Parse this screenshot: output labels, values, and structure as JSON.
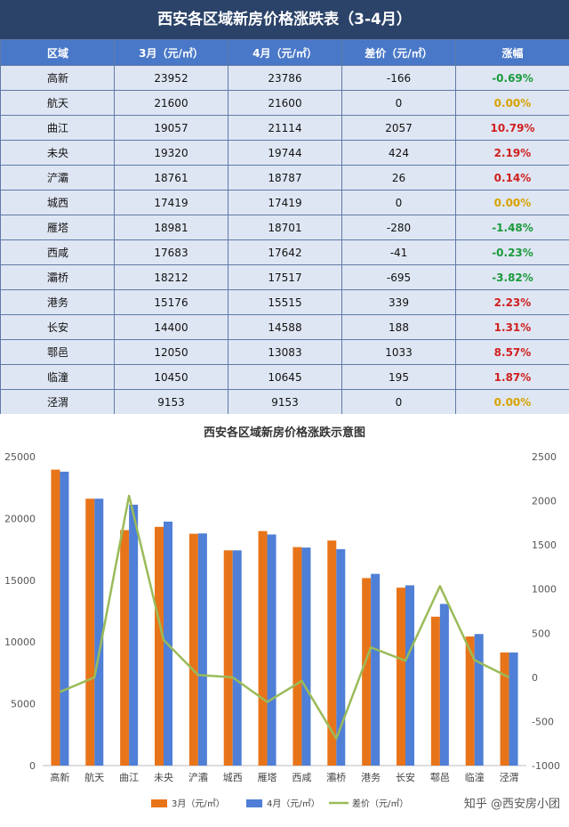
{
  "table": {
    "title": "西安各区域新房价格涨跌表（3-4月）",
    "headers": [
      "区域",
      "3月（元/㎡）",
      "4月（元/㎡）",
      "差价（元/㎡）",
      "涨幅"
    ],
    "rows": [
      {
        "region": "高新",
        "mar": "23952",
        "apr": "23786",
        "diff": "-166",
        "pct": "-0.69%",
        "color": "#1a9a3a"
      },
      {
        "region": "航天",
        "mar": "21600",
        "apr": "21600",
        "diff": "0",
        "pct": "0.00%",
        "color": "#d8a200"
      },
      {
        "region": "曲江",
        "mar": "19057",
        "apr": "21114",
        "diff": "2057",
        "pct": "10.79%",
        "color": "#d0201f"
      },
      {
        "region": "未央",
        "mar": "19320",
        "apr": "19744",
        "diff": "424",
        "pct": "2.19%",
        "color": "#d0201f"
      },
      {
        "region": "浐灞",
        "mar": "18761",
        "apr": "18787",
        "diff": "26",
        "pct": "0.14%",
        "color": "#d0201f"
      },
      {
        "region": "城西",
        "mar": "17419",
        "apr": "17419",
        "diff": "0",
        "pct": "0.00%",
        "color": "#d8a200"
      },
      {
        "region": "雁塔",
        "mar": "18981",
        "apr": "18701",
        "diff": "-280",
        "pct": "-1.48%",
        "color": "#1a9a3a"
      },
      {
        "region": "西咸",
        "mar": "17683",
        "apr": "17642",
        "diff": "-41",
        "pct": "-0.23%",
        "color": "#1a9a3a"
      },
      {
        "region": "灞桥",
        "mar": "18212",
        "apr": "17517",
        "diff": "-695",
        "pct": "-3.82%",
        "color": "#1a9a3a"
      },
      {
        "region": "港务",
        "mar": "15176",
        "apr": "15515",
        "diff": "339",
        "pct": "2.23%",
        "color": "#d0201f"
      },
      {
        "region": "长安",
        "mar": "14400",
        "apr": "14588",
        "diff": "188",
        "pct": "1.31%",
        "color": "#d0201f"
      },
      {
        "region": "鄠邑",
        "mar": "12050",
        "apr": "13083",
        "diff": "1033",
        "pct": "8.57%",
        "color": "#d0201f"
      },
      {
        "region": "临潼",
        "mar": "10450",
        "apr": "10645",
        "diff": "195",
        "pct": "1.87%",
        "color": "#d0201f"
      },
      {
        "region": "泾渭",
        "mar": "9153",
        "apr": "9153",
        "diff": "0",
        "pct": "0.00%",
        "color": "#d8a200"
      }
    ]
  },
  "chart_data": {
    "type": "bar",
    "title": "西安各区域新房价格涨跌示意图",
    "categories": [
      "高新",
      "航天",
      "曲江",
      "未央",
      "浐灞",
      "城西",
      "雁塔",
      "西咸",
      "灞桥",
      "港务",
      "长安",
      "鄠邑",
      "临潼",
      "泾渭"
    ],
    "series": [
      {
        "name": "3月（元/㎡）",
        "type": "bar",
        "axis": "left",
        "color": "#e8741a",
        "values": [
          23952,
          21600,
          19057,
          19320,
          18761,
          17419,
          18981,
          17683,
          18212,
          15176,
          14400,
          12050,
          10450,
          9153
        ]
      },
      {
        "name": "4月（元/㎡）",
        "type": "bar",
        "axis": "left",
        "color": "#4f7fd6",
        "values": [
          23786,
          21600,
          21114,
          19744,
          18787,
          17419,
          18701,
          17642,
          17517,
          15515,
          14588,
          13083,
          10645,
          9153
        ]
      },
      {
        "name": "差价（元/㎡）",
        "type": "line",
        "axis": "right",
        "color": "#9bbb59",
        "values": [
          -166,
          0,
          2057,
          424,
          26,
          0,
          -280,
          -41,
          -695,
          339,
          188,
          1033,
          195,
          0
        ]
      }
    ],
    "y_left": {
      "min": 0,
      "max": 25000,
      "ticks": [
        "0",
        "5000",
        "10000",
        "15000",
        "20000",
        "25000"
      ]
    },
    "y_right": {
      "min": -1000,
      "max": 2500,
      "ticks": [
        "-1000",
        "-500",
        "0",
        "500",
        "1000",
        "1500",
        "2000",
        "2500"
      ]
    },
    "legend_position": "bottom",
    "grid": false
  },
  "watermark": {
    "text": "西安房小团",
    "attribution": "知乎 @西安房小团"
  }
}
